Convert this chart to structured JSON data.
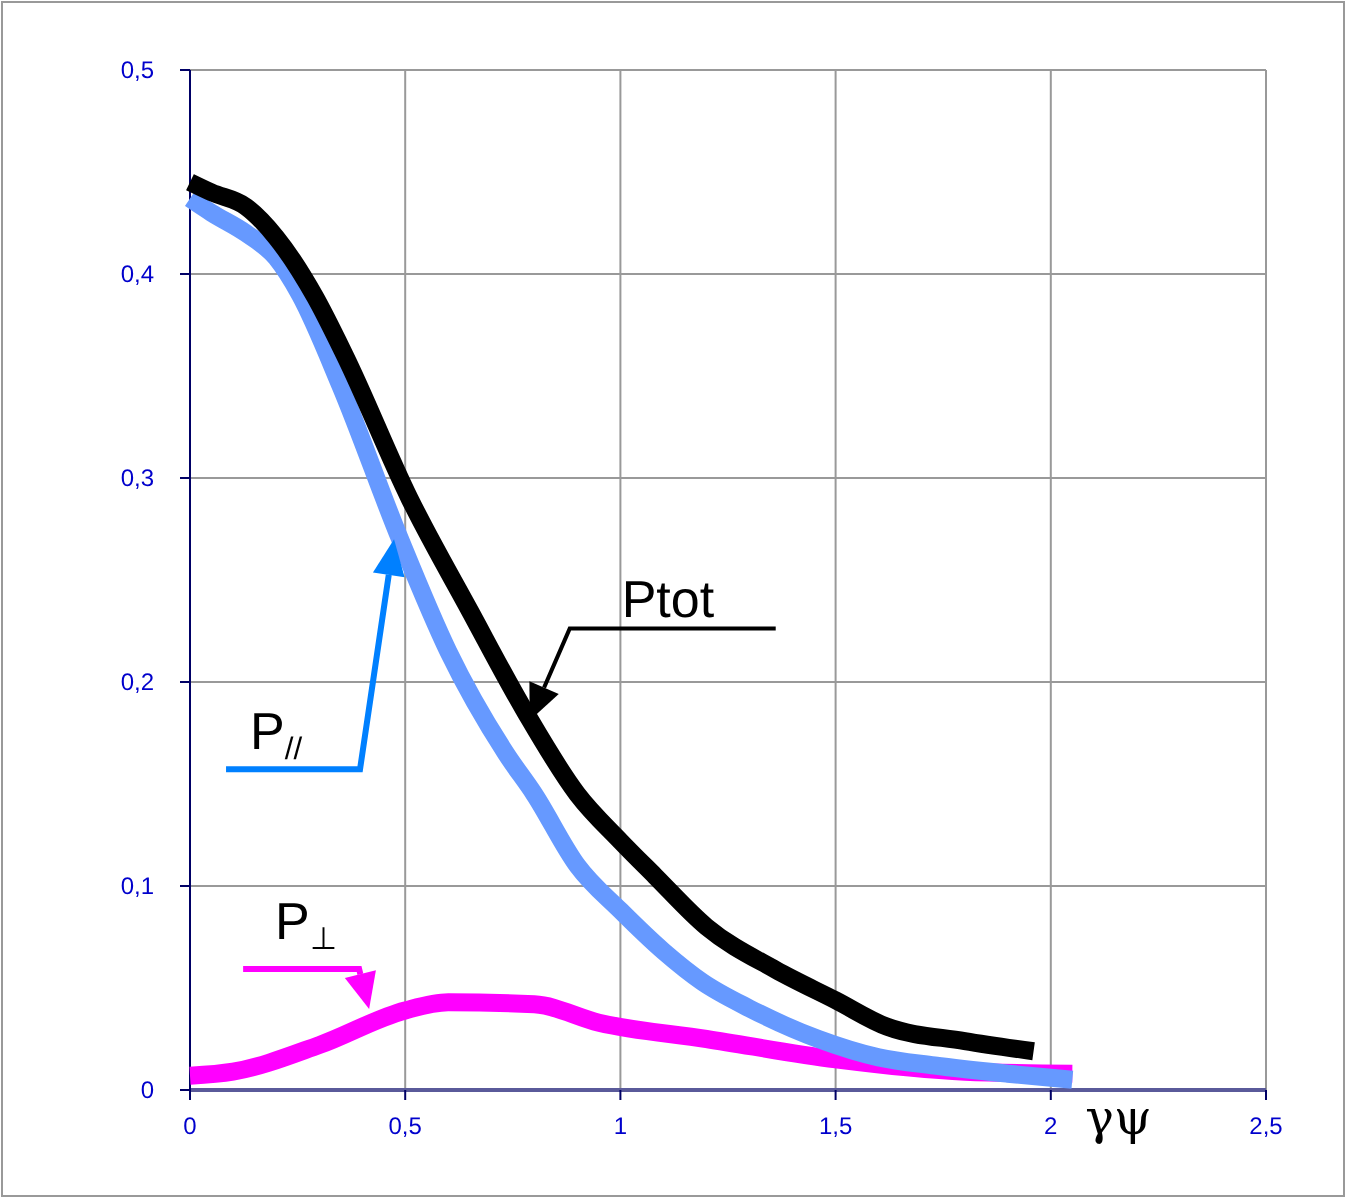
{
  "chart_data": {
    "type": "line",
    "xlabel": "γψ",
    "xlim": [
      0,
      2.5
    ],
    "ylim": [
      0,
      0.5
    ],
    "xticks": [
      0,
      {
        "value": 0.5,
        "label": "0,5"
      },
      1,
      {
        "value": 1.5,
        "label": "1,5"
      },
      2,
      {
        "value": 2.5,
        "label": "2,5"
      }
    ],
    "yticks": [
      0,
      {
        "value": 0.1,
        "label": "0,1"
      },
      {
        "value": 0.2,
        "label": "0,2"
      },
      {
        "value": 0.3,
        "label": "0,3"
      },
      {
        "value": 0.4,
        "label": "0,4"
      },
      {
        "value": 0.5,
        "label": "0,5"
      }
    ],
    "grid": true,
    "marker": "none",
    "line_style": "solid",
    "series": [
      {
        "name": "Ptot",
        "color": "#000000",
        "x": [
          0,
          0.05,
          0.13,
          0.2,
          0.29,
          0.36,
          0.51,
          0.65,
          0.78,
          0.9,
          1.0,
          1.08,
          1.2,
          1.36,
          1.5,
          1.62,
          1.8,
          1.96
        ],
        "values": [
          0.445,
          0.44,
          0.433,
          0.418,
          0.389,
          0.36,
          0.29,
          0.235,
          0.185,
          0.145,
          0.122,
          0.105,
          0.08,
          0.059,
          0.044,
          0.031,
          0.024,
          0.019
        ]
      },
      {
        "name": "P$_{//}$",
        "color": "#6699ff",
        "x": [
          0,
          0.05,
          0.13,
          0.2,
          0.255,
          0.35,
          0.488,
          0.6,
          0.734,
          0.8,
          0.9,
          1.0,
          1.1,
          1.19,
          1.3,
          1.46,
          1.6,
          1.73,
          1.9,
          2.05
        ],
        "values": [
          0.437,
          0.43,
          0.42,
          0.408,
          0.39,
          0.345,
          0.27,
          0.215,
          0.165,
          0.145,
          0.11,
          0.088,
          0.068,
          0.053,
          0.04,
          0.025,
          0.016,
          0.012,
          0.008,
          0.005
        ]
      },
      {
        "name": "P$_{⊥}$",
        "color": "#ff00ff",
        "x": [
          0,
          0.1,
          0.3,
          0.5,
          0.6,
          0.8,
          0.95,
          1.2,
          1.5,
          1.8,
          2.05
        ],
        "values": [
          0.007,
          0.009,
          0.022,
          0.039,
          0.043,
          0.042,
          0.033,
          0.025,
          0.015,
          0.009,
          0.008
        ]
      }
    ]
  }
}
